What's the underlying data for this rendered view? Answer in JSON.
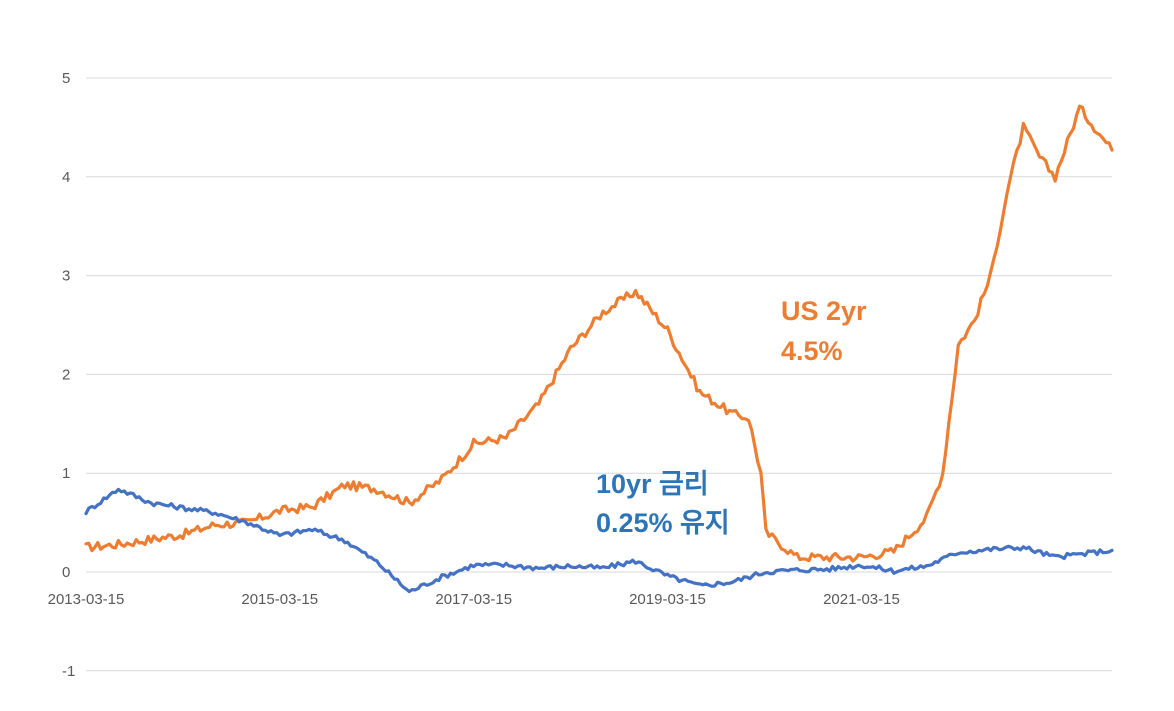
{
  "chart_data": {
    "type": "line",
    "title": "",
    "xlabel": "",
    "ylabel": "",
    "x_range": [
      "2013-03-15",
      "2023-10-15"
    ],
    "ylim": [
      -1,
      5
    ],
    "y_ticks": [
      "5",
      "4",
      "3",
      "2",
      "1",
      "0",
      "-1"
    ],
    "x_ticks": [
      "2013-03-15",
      "2015-03-15",
      "2017-03-15",
      "2019-03-15",
      "2021-03-15"
    ],
    "grid": "horizontal",
    "legend": "none",
    "annotations": [
      {
        "lines": [
          "US  2yr",
          "4.5%"
        ],
        "color": "#ED7D31"
      },
      {
        "lines": [
          "10yr 금리",
          "0.25% 유지"
        ],
        "color": "#2E75B6"
      }
    ],
    "series": [
      {
        "color": "#ED7D31",
        "points": [
          [
            "2013-03-15",
            0.25
          ],
          [
            "2013-07-15",
            0.28
          ],
          [
            "2013-11-15",
            0.33
          ],
          [
            "2014-03-15",
            0.38
          ],
          [
            "2014-07-15",
            0.48
          ],
          [
            "2014-11-15",
            0.5
          ],
          [
            "2015-03-15",
            0.62
          ],
          [
            "2015-07-15",
            0.66
          ],
          [
            "2015-11-15",
            0.88
          ],
          [
            "2016-03-15",
            0.84
          ],
          [
            "2016-07-15",
            0.7
          ],
          [
            "2016-11-15",
            0.94
          ],
          [
            "2017-03-15",
            1.3
          ],
          [
            "2017-07-15",
            1.36
          ],
          [
            "2017-11-15",
            1.7
          ],
          [
            "2018-03-15",
            2.26
          ],
          [
            "2018-07-15",
            2.63
          ],
          [
            "2018-11-15",
            2.84
          ],
          [
            "2019-03-15",
            2.45
          ],
          [
            "2019-07-15",
            1.82
          ],
          [
            "2019-11-15",
            1.6
          ],
          [
            "2020-01-15",
            1.56
          ],
          [
            "2020-03-01",
            1.0
          ],
          [
            "2020-03-20",
            0.4
          ],
          [
            "2020-07-15",
            0.15
          ],
          [
            "2020-11-15",
            0.15
          ],
          [
            "2021-03-15",
            0.15
          ],
          [
            "2021-07-15",
            0.21
          ],
          [
            "2021-11-15",
            0.55
          ],
          [
            "2022-01-15",
            1.0
          ],
          [
            "2022-03-15",
            2.3
          ],
          [
            "2022-05-15",
            2.55
          ],
          [
            "2022-07-15",
            3.0
          ],
          [
            "2022-09-15",
            3.85
          ],
          [
            "2022-11-15",
            4.5
          ],
          [
            "2023-01-15",
            4.2
          ],
          [
            "2023-03-15",
            4.0
          ],
          [
            "2023-06-15",
            4.7
          ],
          [
            "2023-10-15",
            4.27
          ]
        ]
      },
      {
        "color": "#4472C4",
        "points": [
          [
            "2013-03-15",
            0.61
          ],
          [
            "2013-07-15",
            0.84
          ],
          [
            "2013-11-15",
            0.7
          ],
          [
            "2014-03-15",
            0.65
          ],
          [
            "2014-07-15",
            0.6
          ],
          [
            "2014-11-15",
            0.5
          ],
          [
            "2015-03-15",
            0.37
          ],
          [
            "2015-07-15",
            0.43
          ],
          [
            "2015-11-15",
            0.32
          ],
          [
            "2016-03-15",
            0.1
          ],
          [
            "2016-07-15",
            -0.2
          ],
          [
            "2016-11-15",
            -0.05
          ],
          [
            "2017-03-15",
            0.07
          ],
          [
            "2017-07-15",
            0.07
          ],
          [
            "2017-11-15",
            0.04
          ],
          [
            "2018-03-15",
            0.06
          ],
          [
            "2018-07-15",
            0.04
          ],
          [
            "2018-11-15",
            0.11
          ],
          [
            "2019-03-15",
            -0.04
          ],
          [
            "2019-07-15",
            -0.14
          ],
          [
            "2019-11-15",
            -0.1
          ],
          [
            "2020-03-15",
            0.0
          ],
          [
            "2020-07-15",
            0.02
          ],
          [
            "2020-11-15",
            0.03
          ],
          [
            "2021-03-15",
            0.07
          ],
          [
            "2021-07-15",
            0.01
          ],
          [
            "2021-11-15",
            0.06
          ],
          [
            "2022-03-15",
            0.2
          ],
          [
            "2022-07-15",
            0.23
          ],
          [
            "2022-11-15",
            0.25
          ],
          [
            "2023-03-15",
            0.15
          ],
          [
            "2023-10-15",
            0.22
          ]
        ]
      }
    ]
  }
}
